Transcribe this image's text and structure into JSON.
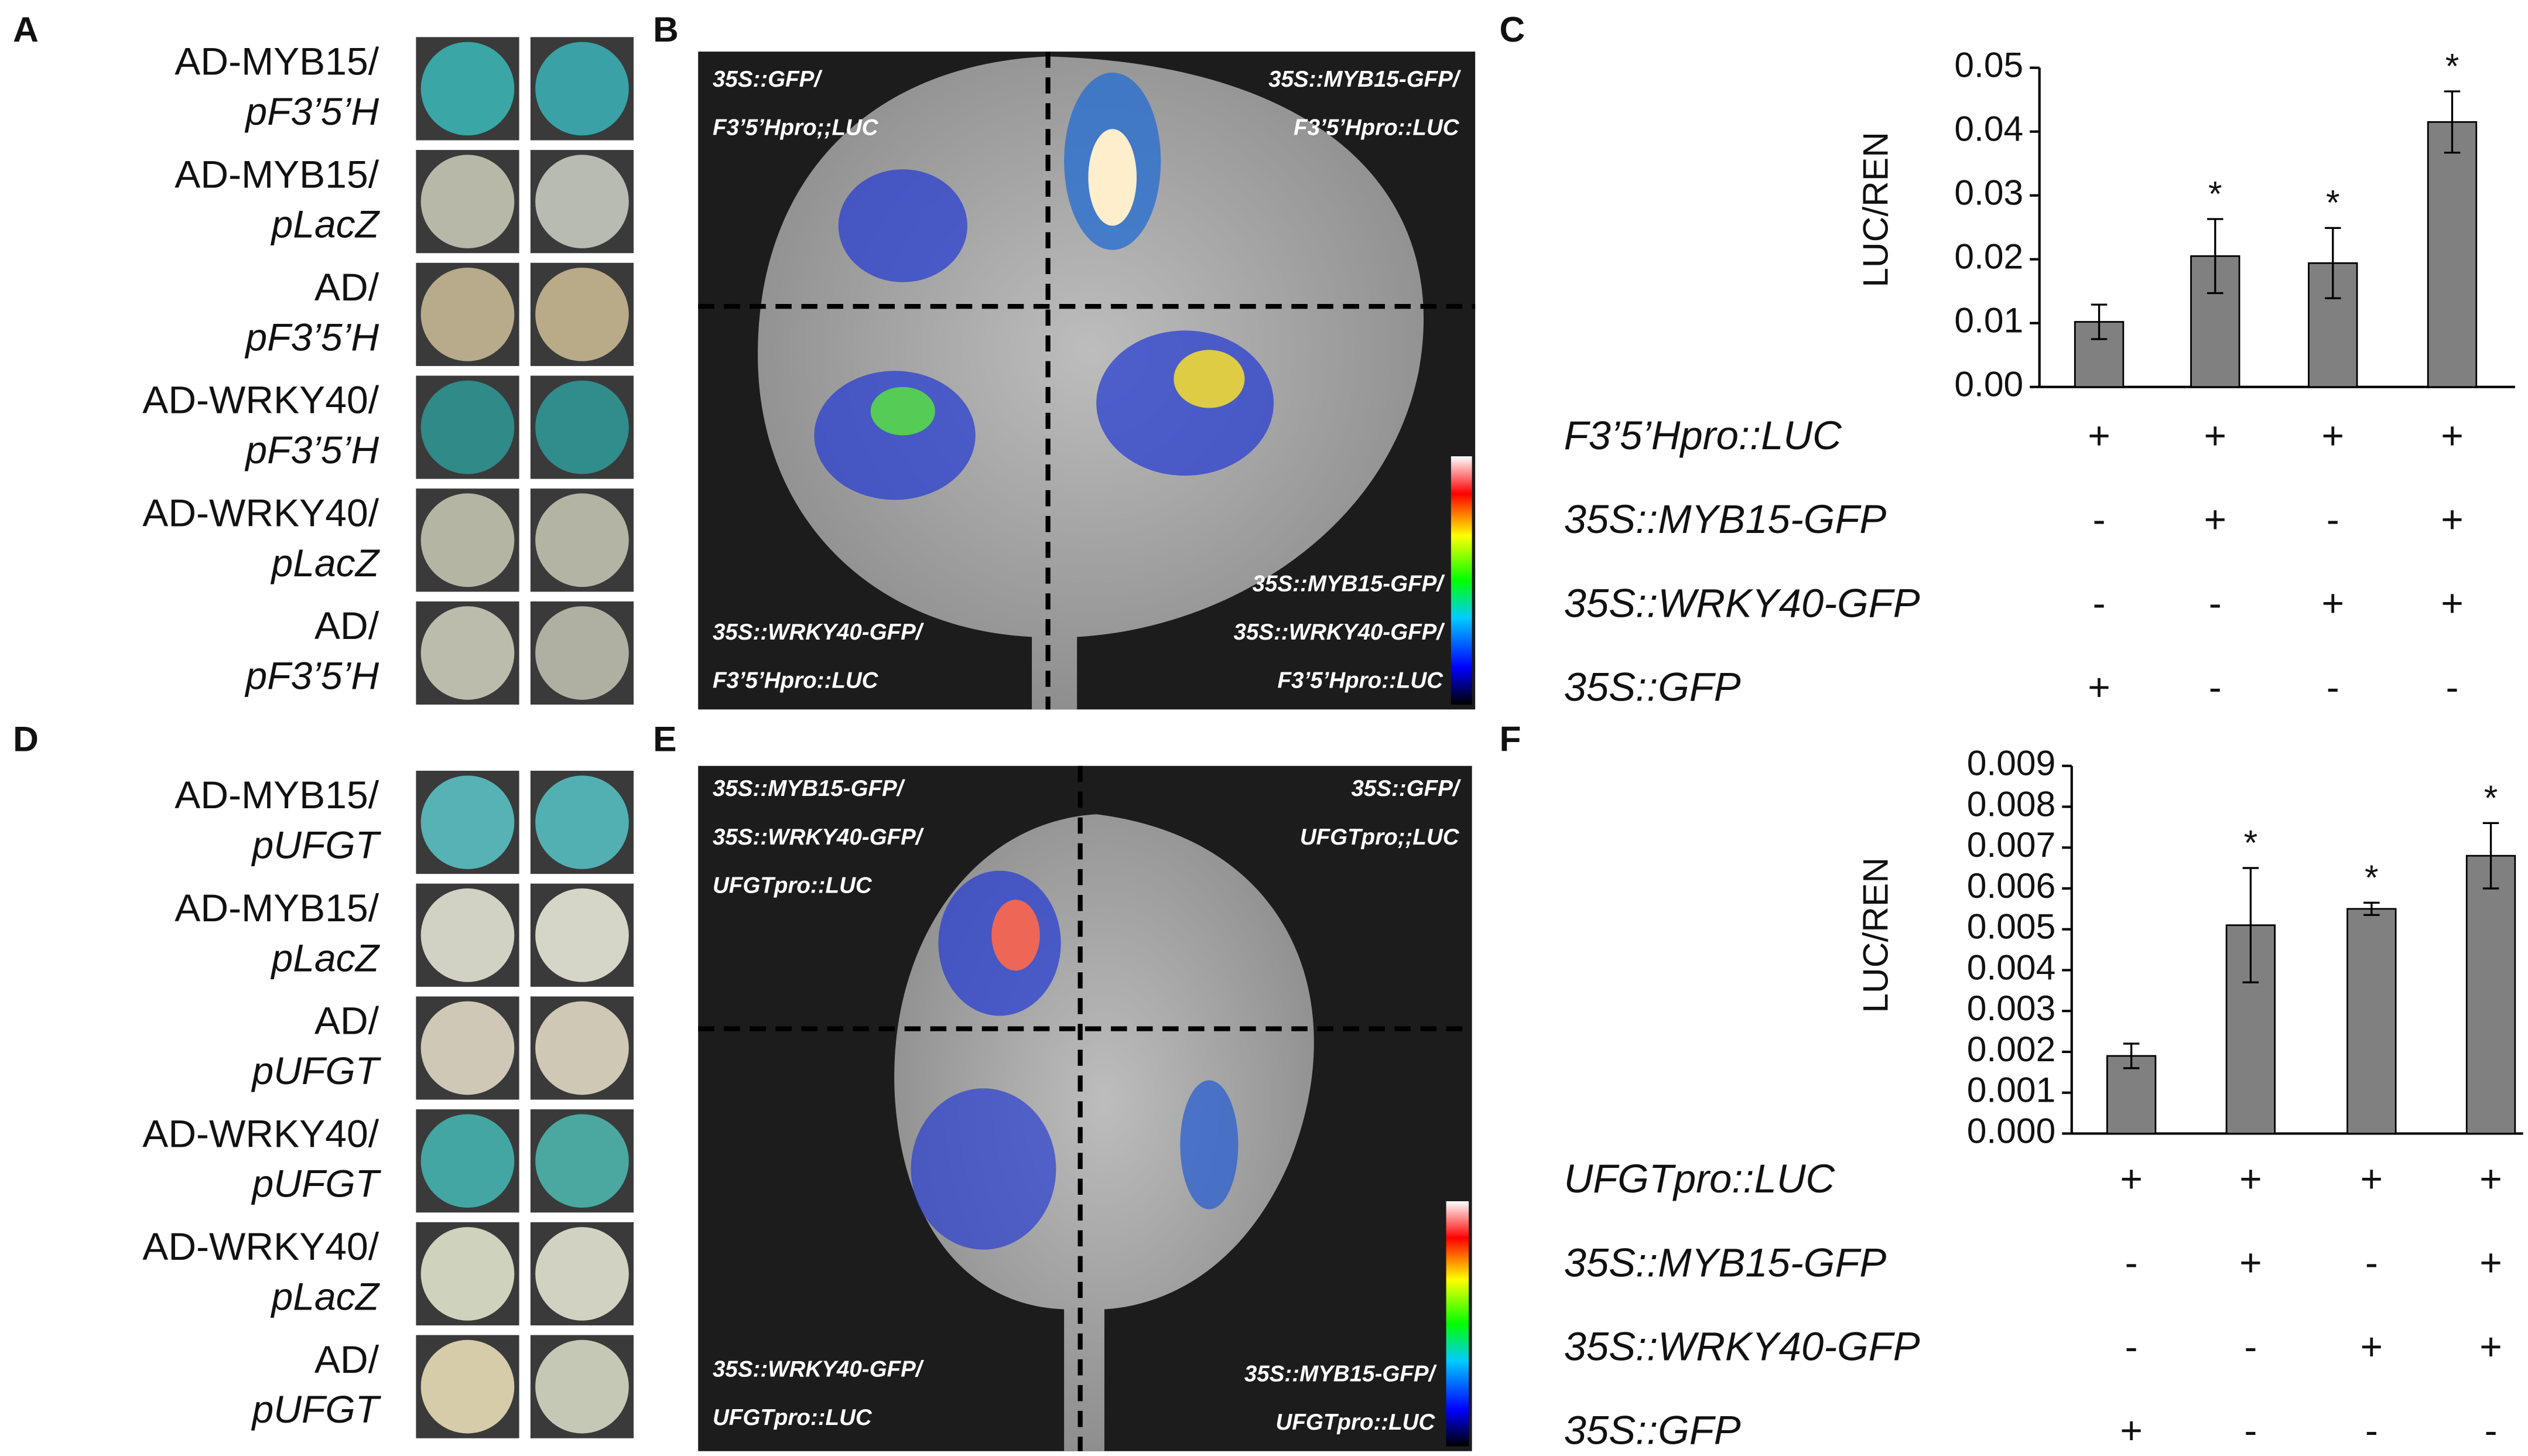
{
  "panel_labels": [
    "A",
    "B",
    "C",
    "D",
    "E",
    "F"
  ],
  "panel_a": {
    "rows": [
      [
        "AD-MYB15/",
        "pF3’5’H"
      ],
      [
        "AD-MYB15/",
        "pLacZ"
      ],
      [
        "AD/",
        "pF3’5’H"
      ],
      [
        "AD-WRKY40/",
        "pF3’5’H"
      ],
      [
        "AD-WRKY40/",
        "pLacZ"
      ],
      [
        "AD/",
        "pF3’5’H"
      ]
    ]
  },
  "panel_b": {
    "quadrants": [
      [
        "35S::GFP/",
        "F3’5’Hpro;;LUC"
      ],
      [
        "35S::MYB15-GFP/",
        "F3’5’Hpro::LUC"
      ],
      [
        "35S::WRKY40-GFP/",
        "F3’5’Hpro::LUC"
      ],
      [
        "35S::MYB15-GFP/",
        "35S::WRKY40-GFP/",
        "F3’5’Hpro::LUC"
      ]
    ]
  },
  "panel_d": {
    "rows": [
      [
        "AD-MYB15/",
        "pUFGT"
      ],
      [
        "AD-MYB15/",
        "pLacZ"
      ],
      [
        "AD/",
        "pUFGT"
      ],
      [
        "AD-WRKY40/",
        "pUFGT"
      ],
      [
        "AD-WRKY40/",
        "pLacZ"
      ],
      [
        "AD/",
        "pUFGT"
      ]
    ]
  },
  "panel_e": {
    "quadrants": [
      [
        "35S::MYB15-GFP/",
        "35S::WRKY40-GFP/",
        "UFGTpro::LUC"
      ],
      [
        "35S::GFP/",
        "UFGTpro;;LUC"
      ],
      [
        "35S::WRKY40-GFP/",
        "UFGTpro::LUC"
      ],
      [
        "35S::MYB15-GFP/",
        "UFGTpro::LUC"
      ]
    ]
  },
  "chart_data": [
    {
      "type": "bar",
      "y_label": "LUC/REN",
      "color": "#808080",
      "values": [
        0.0102,
        0.0205,
        0.0194,
        0.0415
      ],
      "errors": [
        0.0027,
        0.0058,
        0.0055,
        0.0048
      ],
      "significance": [
        null,
        "*",
        "*",
        "*"
      ],
      "ylim": [
        0,
        0.05
      ],
      "yticks": [
        {
          "value": 0,
          "label": "0.00"
        },
        0.01,
        0.02,
        0.03,
        0.04,
        0.05
      ],
      "treatments": [
        {
          "name": "F3’5’Hpro::LUC",
          "marks": [
            "+",
            "+",
            "+",
            "+"
          ]
        },
        {
          "name": "35S::MYB15-GFP",
          "marks": [
            "-",
            "+",
            "-",
            "+"
          ]
        },
        {
          "name": "35S::WRKY40-GFP",
          "marks": [
            "-",
            "-",
            "+",
            "+"
          ]
        },
        {
          "name": "35S::GFP",
          "marks": [
            "+",
            "-",
            "-",
            "-"
          ]
        }
      ]
    },
    {
      "type": "bar",
      "y_label": "LUC/REN",
      "color": "#808080",
      "values": [
        0.0019,
        0.0051,
        0.0055,
        0.0068
      ],
      "errors": [
        0.0003,
        0.0014,
        0.00015,
        0.0008
      ],
      "significance": [
        null,
        "*",
        "*",
        "*"
      ],
      "ylim": [
        0,
        0.009
      ],
      "yticks": [
        {
          "value": 0,
          "label": "0.000"
        },
        0.001,
        0.002,
        0.003,
        0.004,
        0.005,
        0.006,
        0.007,
        0.008,
        0.009
      ],
      "treatments": [
        {
          "name": "UFGTpro::LUC",
          "marks": [
            "+",
            "+",
            "+",
            "+"
          ]
        },
        {
          "name": "35S::MYB15-GFP",
          "marks": [
            "-",
            "+",
            "-",
            "+"
          ]
        },
        {
          "name": "35S::WRKY40-GFP",
          "marks": [
            "-",
            "-",
            "+",
            "+"
          ]
        },
        {
          "name": "35S::GFP",
          "marks": [
            "+",
            "-",
            "-",
            "-"
          ]
        }
      ]
    }
  ]
}
